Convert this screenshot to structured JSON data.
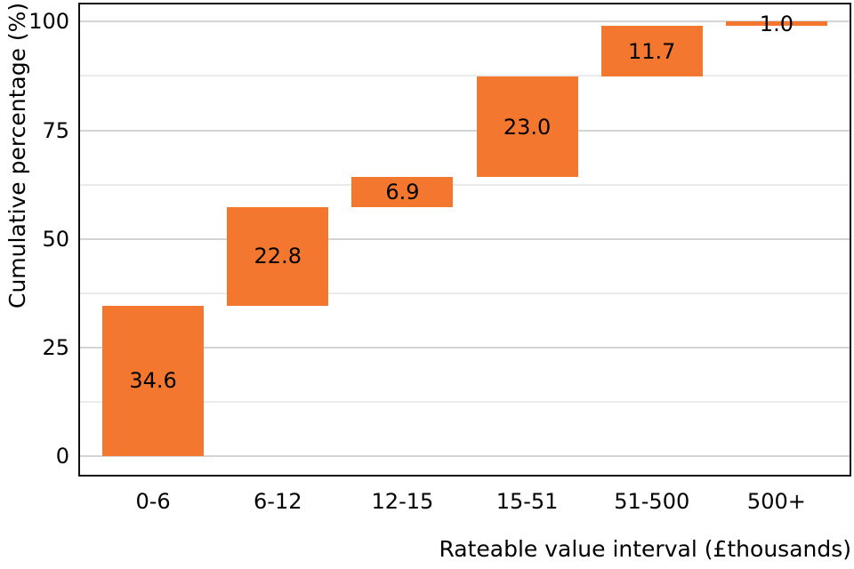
{
  "chart_data": {
    "type": "bar",
    "subtype": "waterfall",
    "title": "",
    "xlabel": "Rateable value interval (£thousands)",
    "ylabel": "Cumulative percentage (%)",
    "categories": [
      "0-6",
      "6-12",
      "12-15",
      "15-51",
      "51-500",
      "500+"
    ],
    "values": [
      34.6,
      22.8,
      6.9,
      23.0,
      11.7,
      1.0
    ],
    "bar_labels": [
      "34.6",
      "22.8",
      "6.9",
      "23.0",
      "11.7",
      "1.0"
    ],
    "cumulative_start": [
      0,
      34.6,
      57.4,
      64.3,
      87.3,
      99.0
    ],
    "cumulative_end": [
      34.6,
      57.4,
      64.3,
      87.3,
      99.0,
      100.0
    ],
    "ylim": [
      0,
      100
    ],
    "y_major_ticks": [
      0,
      25,
      50,
      75,
      100
    ],
    "y_tick_labels": [
      "0",
      "25",
      "50",
      "75",
      "100"
    ],
    "y_minor_gridlines": [
      12.5,
      37.5,
      62.5,
      87.5
    ],
    "grid": "horizontal",
    "legend": "none",
    "colors": {
      "bar_fill": "#f4772f",
      "major_grid": "#d4d4d4",
      "minor_grid": "#ebebeb",
      "panel_border": "#111111",
      "text": "#000000",
      "background": "#ffffff"
    }
  }
}
